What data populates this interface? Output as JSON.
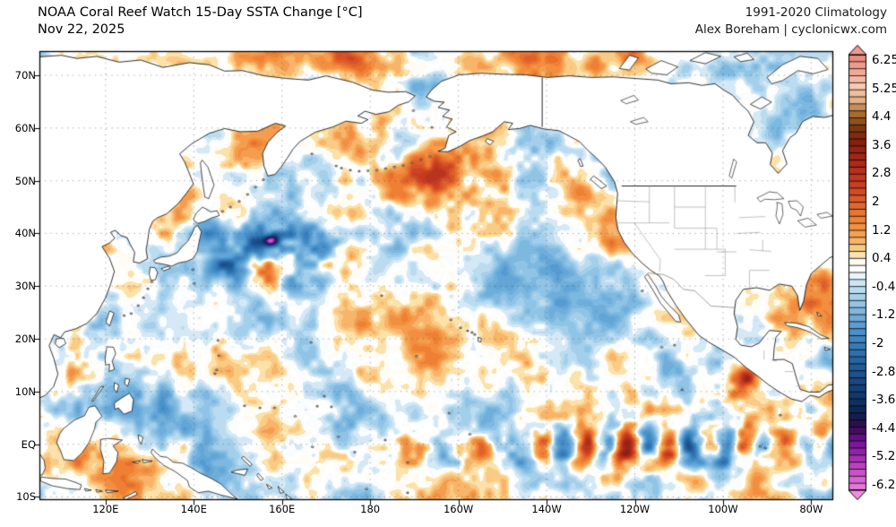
{
  "header": {
    "title": "NOAA Coral Reef Watch 15-Day SSTA Change [°C]",
    "date": "Nov 22, 2025",
    "climatology": "1991-2020 Climatology",
    "credit": "Alex Boreham | cyclonicwx.com"
  },
  "axes": {
    "lat_ticks": [
      {
        "label": "70N",
        "lat": 70
      },
      {
        "label": "60N",
        "lat": 60
      },
      {
        "label": "50N",
        "lat": 50
      },
      {
        "label": "40N",
        "lat": 40
      },
      {
        "label": "30N",
        "lat": 30
      },
      {
        "label": "20N",
        "lat": 20
      },
      {
        "label": "10N",
        "lat": 10
      },
      {
        "label": "EQ",
        "lat": 0
      },
      {
        "label": "10S",
        "lat": -10
      }
    ],
    "lon_ticks": [
      {
        "label": "120E",
        "lon": 120
      },
      {
        "label": "140E",
        "lon": 140
      },
      {
        "label": "160E",
        "lon": 160
      },
      {
        "label": "180",
        "lon": 180
      },
      {
        "label": "160W",
        "lon": 200
      },
      {
        "label": "140W",
        "lon": 220
      },
      {
        "label": "120W",
        "lon": 240
      },
      {
        "label": "100W",
        "lon": 260
      },
      {
        "label": "80W",
        "lon": 280
      }
    ]
  },
  "colorbar": {
    "ticks": [
      "6.25",
      "5.25",
      "4.4",
      "3.6",
      "2.8",
      "2",
      "1.2",
      "0.4",
      "-0.4",
      "-1.2",
      "-2",
      "-2.8",
      "-3.6",
      "-4.4",
      "-5.25",
      "-6.25"
    ],
    "top_arrow_color": "#ef9a8d",
    "bottom_arrow_color": "#f18de2",
    "stops": [
      [
        0.0,
        "#e98578"
      ],
      [
        0.075,
        "#f8cab3"
      ],
      [
        0.105,
        "#e3b286"
      ],
      [
        0.137,
        "#a96a2e"
      ],
      [
        0.168,
        "#7a3a10"
      ],
      [
        0.2,
        "#871f10"
      ],
      [
        0.262,
        "#b52d1e"
      ],
      [
        0.3,
        "#c93f24"
      ],
      [
        0.325,
        "#d95428"
      ],
      [
        0.387,
        "#f08a3a"
      ],
      [
        0.42,
        "#f6a95c"
      ],
      [
        0.449,
        "#fad389"
      ],
      [
        0.468,
        "#fdeec8"
      ],
      [
        0.478,
        "#ffffff"
      ],
      [
        0.502,
        "#ffffff"
      ],
      [
        0.512,
        "#ddeef8"
      ],
      [
        0.574,
        "#93c4e4"
      ],
      [
        0.637,
        "#4a90ca"
      ],
      [
        0.699,
        "#2766a4"
      ],
      [
        0.761,
        "#16427a"
      ],
      [
        0.824,
        "#0a2450"
      ],
      [
        0.855,
        "#37094f"
      ],
      [
        0.886,
        "#6d1390"
      ],
      [
        0.92,
        "#9c28b0"
      ],
      [
        0.949,
        "#c247c4"
      ],
      [
        1.0,
        "#ea80dc"
      ]
    ]
  },
  "map": {
    "projection": {
      "lon_min": 105,
      "lon_max": 285,
      "lat_min": -10.6,
      "lat_max": 74.6
    },
    "value_stops": [
      [
        6.2,
        "#ef9a8d"
      ],
      [
        5.4,
        "#f6c3ae"
      ],
      [
        4.8,
        "#d99c5e"
      ],
      [
        4.4,
        "#a96a2e"
      ],
      [
        4.0,
        "#7d3c10"
      ],
      [
        3.4,
        "#8f1f10"
      ],
      [
        2.8,
        "#b02c1c"
      ],
      [
        2.2,
        "#cc4424"
      ],
      [
        1.8,
        "#e0602a"
      ],
      [
        1.4,
        "#ee7f33"
      ],
      [
        1.0,
        "#f59d4e"
      ],
      [
        0.7,
        "#f9c177"
      ],
      [
        0.45,
        "#fbd998"
      ],
      [
        0.3,
        "#fdf0cc"
      ],
      [
        0.18,
        "#ffffff"
      ],
      [
        -0.18,
        "#ffffff"
      ],
      [
        -0.3,
        "#e2f0f9"
      ],
      [
        -0.5,
        "#c5e1f3"
      ],
      [
        -0.8,
        "#a3cfeb"
      ],
      [
        -1.2,
        "#7db8e0"
      ],
      [
        -1.7,
        "#5ba0d4"
      ],
      [
        -2.2,
        "#3f88c4"
      ],
      [
        -2.8,
        "#2b6dac"
      ],
      [
        -3.4,
        "#1e5592"
      ],
      [
        -4.0,
        "#143f76"
      ],
      [
        -4.6,
        "#0c2a58"
      ],
      [
        -5.0,
        "#3b0f5e"
      ],
      [
        -5.5,
        "#7c1698"
      ],
      [
        -6.0,
        "#b23dbc"
      ],
      [
        -6.5,
        "#e274d6"
      ]
    ],
    "anomaly_features": [
      [
        152,
        38.5,
        9,
        2.6,
        -2.4
      ],
      [
        164,
        39.5,
        7,
        2.4,
        -2.0
      ],
      [
        143,
        41,
        4,
        2,
        -1.6
      ],
      [
        150,
        34.5,
        10,
        2.6,
        -0.9
      ],
      [
        157.5,
        38.8,
        1.1,
        0.7,
        -3.4
      ],
      [
        150,
        56,
        7,
        3,
        1.05
      ],
      [
        170,
        57.5,
        7,
        3,
        0.6
      ],
      [
        205,
        49,
        14,
        4.5,
        1.25
      ],
      [
        193,
        54.5,
        9,
        3.5,
        0.7
      ],
      [
        215,
        31.5,
        20,
        4.5,
        -1.05
      ],
      [
        228,
        24,
        10,
        4,
        -0.5
      ],
      [
        233,
        41,
        4,
        4,
        0.7
      ],
      [
        249,
        27.5,
        5,
        3.5,
        0.95
      ],
      [
        258,
        18.5,
        5,
        3,
        1.0
      ],
      [
        265.3,
        12.8,
        2.1,
        1.5,
        2.8
      ],
      [
        262,
        8.5,
        8,
        3.5,
        0.7
      ],
      [
        134,
        6,
        13,
        6,
        -0.8
      ],
      [
        122,
        14,
        7,
        6,
        -0.85
      ],
      [
        153,
        -7,
        9,
        3.5,
        -1.05
      ],
      [
        172,
        2,
        8,
        4,
        -0.55
      ],
      [
        191,
        67.5,
        5,
        2.5,
        -1.1
      ],
      [
        162,
        73.5,
        18,
        2.2,
        0.85
      ],
      [
        215,
        72.8,
        25,
        2.2,
        0.7
      ],
      [
        281,
        47,
        4,
        3.5,
        -1.15
      ],
      [
        276,
        58,
        5,
        3.5,
        -0.85
      ],
      [
        280,
        52.5,
        2,
        1.7,
        0.8
      ],
      [
        268,
        26.5,
        5,
        3,
        0.85
      ],
      [
        278,
        15.5,
        6,
        3,
        -0.5
      ],
      [
        283.5,
        31,
        3,
        3,
        0.8
      ],
      [
        218,
        14,
        9,
        4,
        0.55
      ],
      [
        117.5,
        38.5,
        2.5,
        1.5,
        0.5
      ]
    ],
    "variance_features": [
      [
        158,
        37,
        12,
        4,
        0.95
      ],
      [
        240,
        0,
        38,
        3.5,
        0.7
      ],
      [
        205,
        50,
        16,
        6,
        0.3
      ],
      [
        263,
        12,
        9,
        5,
        0.5
      ],
      [
        120,
        10,
        10,
        8,
        0.25
      ]
    ],
    "equatorial_waves": [
      [
        183,
        218,
        14,
        190,
        1.15,
        -0.5,
        2.6
      ],
      [
        214,
        262,
        9.5,
        238,
        2.2,
        -0.3,
        2.2
      ],
      [
        258,
        285,
        9,
        274.5,
        1.5,
        0.5,
        2.0
      ],
      [
        218,
        262,
        18,
        235,
        0.8,
        -7.5,
        2.0
      ]
    ]
  }
}
